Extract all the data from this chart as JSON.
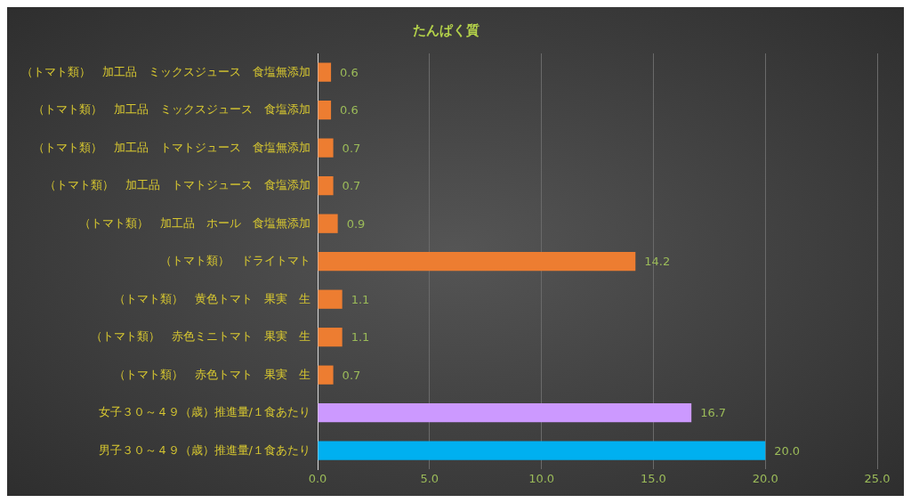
{
  "chart_data": {
    "type": "bar",
    "orientation": "horizontal",
    "title": "たんぱく質",
    "categories": [
      "（トマト類）　加工品　ミックスジュース　食塩無添加",
      "（トマト類）　加工品　ミックスジュース　食塩添加",
      "（トマト類）　加工品　トマトジュース　食塩無添加",
      "（トマト類）　加工品　トマトジュース　食塩添加",
      "（トマト類）　加工品　ホール　食塩無添加",
      "（トマト類）　ドライトマト",
      "（トマト類）　黄色トマト　果実　生",
      "（トマト類）　赤色ミニトマト　果実　生",
      "（トマト類）　赤色トマト　果実　生",
      "女子３０～４９（歳）推進量/１食あたり",
      "男子３０～４９（歳）推進量/１食あたり"
    ],
    "values": [
      0.6,
      0.6,
      0.7,
      0.7,
      0.9,
      14.2,
      1.1,
      1.1,
      0.7,
      16.7,
      20.0
    ],
    "value_labels": [
      "0.6",
      "0.6",
      "0.7",
      "0.7",
      "0.9",
      "14.2",
      "1.1",
      "1.1",
      "0.7",
      "16.7",
      "20.0"
    ],
    "colors": [
      "#ed7d31",
      "#ed7d31",
      "#ed7d31",
      "#ed7d31",
      "#ed7d31",
      "#ed7d31",
      "#ed7d31",
      "#ed7d31",
      "#ed7d31",
      "#cc99ff",
      "#00b0f0"
    ],
    "xlim": [
      0,
      25
    ],
    "xticks": [
      {
        "value": 0,
        "label": "0.0"
      },
      {
        "value": 5,
        "label": "5.0"
      },
      {
        "value": 10,
        "label": "10.0"
      },
      {
        "value": 15,
        "label": "15.0"
      },
      {
        "value": 20,
        "label": "20.0"
      },
      {
        "value": 25,
        "label": "25.0"
      }
    ],
    "grid": "x",
    "legend": false
  }
}
